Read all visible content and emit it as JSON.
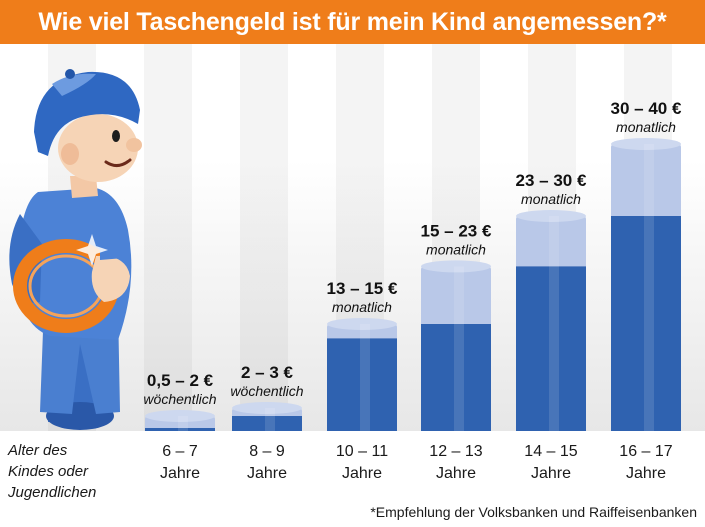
{
  "header": {
    "title": "Wie viel Taschengeld ist für mein Kind angemessen?*"
  },
  "axis_caption": [
    "Alter des",
    "Kindes oder",
    "Jugendlichen"
  ],
  "footnote": "*Empfehlung der Volksbanken und Raiffeisenbanken",
  "colors": {
    "header": "#ef7d1a",
    "bar_dark": "#2f62b0",
    "bar_light": "#b9c8e8"
  },
  "chart_data": {
    "type": "bar",
    "title": "Wie viel Taschengeld ist für mein Kind angemessen?*",
    "xlabel": "Alter des Kindes oder Jugendlichen",
    "ylabel": "",
    "unit": "€",
    "categories": [
      "6 – 7 Jahre",
      "8 – 9 Jahre",
      "10 – 11 Jahre",
      "12 – 13 Jahre",
      "14 – 15 Jahre",
      "16 – 17 Jahre"
    ],
    "bars": [
      {
        "age": "6 – 7",
        "years": "Jahre",
        "min": 0.5,
        "max": 2,
        "label": "0,5 – 2 €",
        "period": "wöchentlich"
      },
      {
        "age": "8 – 9",
        "years": "Jahre",
        "min": 2,
        "max": 3,
        "label": "2 – 3 €",
        "period": "wöchentlich"
      },
      {
        "age": "10 – 11",
        "years": "Jahre",
        "min": 13,
        "max": 15,
        "label": "13 – 15 €",
        "period": "monatlich"
      },
      {
        "age": "12 – 13",
        "years": "Jahre",
        "min": 15,
        "max": 23,
        "label": "15 – 23 €",
        "period": "monatlich"
      },
      {
        "age": "14 – 15",
        "years": "Jahre",
        "min": 23,
        "max": 30,
        "label": "23 – 30 €",
        "period": "monatlich"
      },
      {
        "age": "16 – 17",
        "years": "Jahre",
        "min": 30,
        "max": 40,
        "label": "30 – 40 €",
        "period": "monatlich"
      }
    ],
    "ylim": [
      0,
      40
    ],
    "grid": false,
    "legend": "none"
  }
}
